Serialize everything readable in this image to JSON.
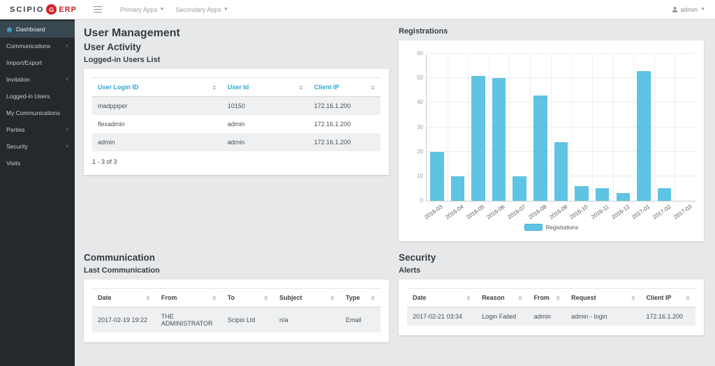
{
  "navbar": {
    "brand": {
      "name": "SCIPIO",
      "logo_letter": "G",
      "suffix": "ERP"
    },
    "menus": [
      {
        "label": "Primary Apps"
      },
      {
        "label": "Secondary Apps"
      }
    ],
    "user": {
      "label": "admin"
    }
  },
  "sidebar": {
    "items": [
      {
        "label": "Dashboard",
        "active": true
      },
      {
        "label": "Communications",
        "chevron": true
      },
      {
        "label": "Import/Export"
      },
      {
        "label": "Invitation",
        "chevron": true
      },
      {
        "label": "Logged-in Users"
      },
      {
        "label": "My Communications"
      },
      {
        "label": "Parties",
        "chevron": true
      },
      {
        "label": "Security",
        "chevron": true
      },
      {
        "label": "Visits"
      }
    ]
  },
  "page": {
    "title": "User Management"
  },
  "sections": {
    "user_activity": {
      "title": "User Activity",
      "subtitle": "Logged-in Users List",
      "table": {
        "columns": [
          "User Login ID",
          "User Id",
          "Client IP"
        ],
        "col_widths": [
          "45%",
          "30%",
          "25%"
        ],
        "rows": [
          [
            {
              "text": "madppiper"
            },
            {
              "text": "10150",
              "link": true
            },
            {
              "text": "172.16.1.200"
            }
          ],
          [
            {
              "text": "flexadmin"
            },
            {
              "text": "admin",
              "link": true
            },
            {
              "text": "172.16.1.200"
            }
          ],
          [
            {
              "text": "admin"
            },
            {
              "text": "admin",
              "link": true
            },
            {
              "text": "172.16.1.200"
            }
          ]
        ],
        "pagination": "1 - 3 of 3"
      }
    },
    "registrations": {
      "title": "Registrations"
    },
    "communication": {
      "title": "Communication",
      "subtitle": "Last Communication",
      "table": {
        "columns": [
          "Date",
          "From",
          "To",
          "Subject",
          "Type"
        ],
        "col_widths": [
          "22%",
          "23%",
          "18%",
          "23%",
          "14%"
        ],
        "rows": [
          [
            {
              "text": "2017-02-19 19:22"
            },
            {
              "text": "THE ADMINISTRATOR",
              "link": true
            },
            {
              "text": "Scipio Ltd",
              "link": true
            },
            {
              "text": "n/a",
              "link": true
            },
            {
              "text": "Email"
            }
          ]
        ]
      }
    },
    "security": {
      "title": "Security",
      "subtitle": "Alerts",
      "table": {
        "columns": [
          "Date",
          "Reason",
          "From",
          "Request",
          "Client IP"
        ],
        "col_widths": [
          "24%",
          "18%",
          "13%",
          "26%",
          "19%"
        ],
        "rows": [
          [
            {
              "text": "2017-02-21 03:34"
            },
            {
              "text": "Login Failed"
            },
            {
              "text": "admin"
            },
            {
              "text": "admin - login",
              "link": true
            },
            {
              "text": "172.16.1.200"
            }
          ]
        ]
      }
    }
  },
  "chart_data": {
    "type": "bar",
    "title": "Registrations",
    "categories": [
      "2016-03",
      "2016-04",
      "2016-05",
      "2016-06",
      "2016-07",
      "2016-08",
      "2016-09",
      "2016-10",
      "2016-11",
      "2016-12",
      "2017-01",
      "2017-02",
      "2017-03"
    ],
    "values": [
      20,
      10,
      51,
      50,
      10,
      43,
      24,
      6,
      5,
      3,
      53,
      5,
      0
    ],
    "xlabel": "",
    "ylabel": "",
    "ylim": [
      0,
      60
    ],
    "ytick_step": 10,
    "grid": true,
    "legend": [
      "Registrations"
    ],
    "legend_position": "bottom",
    "bar_color": "#5fc3e3"
  },
  "colors": {
    "brand_red": "#cf2127",
    "sidebar_bg": "#24292d",
    "sidebar_active_bg": "#374850",
    "accent_cyan": "#2fa7cd",
    "link_blue": "#55b9dc",
    "bar_blue": "#5fc3e3"
  }
}
